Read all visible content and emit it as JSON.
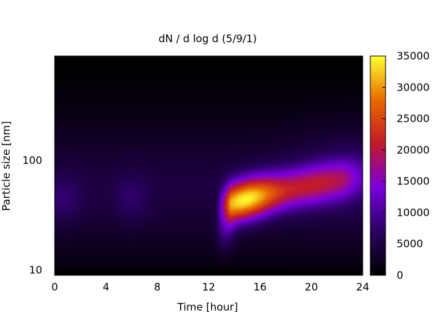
{
  "chart_data": {
    "type": "heatmap",
    "title": "dN / d log d (5/9/1)",
    "xlabel": "Time [hour]",
    "ylabel": "Particle size [nm]",
    "xlim": [
      0,
      24
    ],
    "x_ticks": [
      0,
      4,
      8,
      12,
      16,
      20,
      24
    ],
    "ylim": [
      9,
      900
    ],
    "y_scale": "log",
    "y_ticks": [
      10,
      100
    ],
    "colorbar": {
      "min": 0,
      "max": 35000,
      "ticks": [
        0,
        5000,
        10000,
        15000,
        20000,
        25000,
        30000,
        35000
      ],
      "palette": [
        "#000000",
        "#2a0060",
        "#7a00e0",
        "#c21a2a",
        "#e86a00",
        "#ffff30"
      ]
    },
    "features": [
      {
        "t": 0.5,
        "d": 45,
        "peak": 8000
      },
      {
        "t": 6,
        "d": 45,
        "peak": 7500
      },
      {
        "t": 13.5,
        "d": 30,
        "peak": 16000
      },
      {
        "t": 14.8,
        "d": 45,
        "peak": 30000
      },
      {
        "t": 18,
        "d": 55,
        "peak": 22000
      },
      {
        "t": 21,
        "d": 65,
        "peak": 17000
      }
    ]
  }
}
